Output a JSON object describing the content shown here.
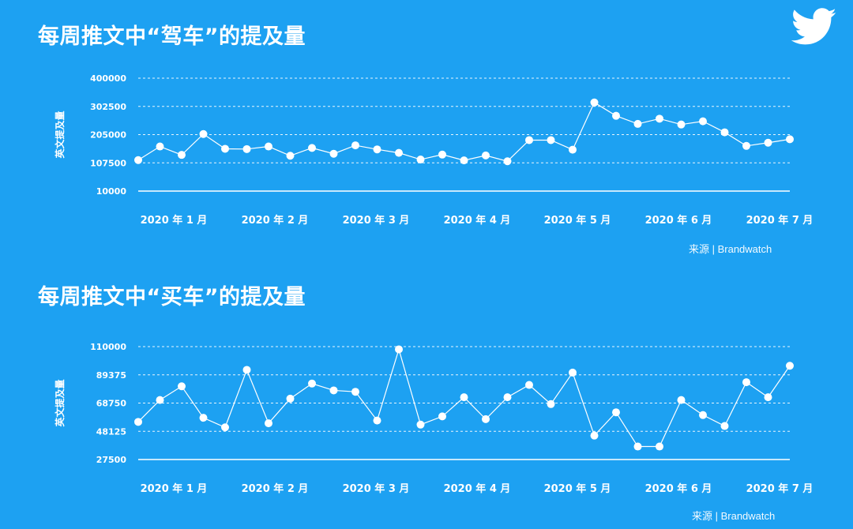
{
  "colors": {
    "background": "#1DA1F2",
    "foreground": "#FFFFFF"
  },
  "logo": {
    "icon": "twitter-bird-icon"
  },
  "chart_data": [
    {
      "type": "line",
      "title": "每周推文中“驾车”的提及量",
      "ylabel": "英文提及量",
      "yticks": [
        10000,
        107500,
        205000,
        302500,
        400000
      ],
      "ylim": [
        10000,
        400000
      ],
      "xtick_labels": [
        "2020 年 1 月",
        "2020 年 2 月",
        "2020 年 3 月",
        "2020 年 4 月",
        "2020 年 5 月",
        "2020 年 6 月",
        "2020 年 7 月"
      ],
      "grid": true,
      "values": [
        117000,
        164000,
        135000,
        207000,
        156000,
        155000,
        164000,
        132000,
        159000,
        139000,
        168000,
        154000,
        142000,
        119000,
        136000,
        116000,
        133000,
        113000,
        186000,
        186000,
        153000,
        316000,
        270000,
        242000,
        260000,
        240000,
        251000,
        213000,
        166000,
        177000,
        189000
      ],
      "source": "来源 | Brandwatch"
    },
    {
      "type": "line",
      "title": "每周推文中“买车”的提及量",
      "ylabel": "英文提及量",
      "yticks": [
        27500,
        48125,
        68750,
        89375,
        110000
      ],
      "ylim": [
        27500,
        110000
      ],
      "xtick_labels": [
        "2020 年 1 月",
        "2020 年 2 月",
        "2020 年 3 月",
        "2020 年 4 月",
        "2020 年 5 月",
        "2020 年 6 月",
        "2020 年 7 月"
      ],
      "grid": true,
      "values": [
        55000,
        71000,
        81000,
        58000,
        51000,
        93000,
        54000,
        72000,
        83000,
        78000,
        77000,
        56000,
        108000,
        53000,
        59000,
        73000,
        57000,
        73000,
        82000,
        68000,
        91000,
        45000,
        62000,
        37000,
        37000,
        71000,
        60000,
        52000,
        84000,
        73000,
        96000
      ],
      "source": "来源 | Brandwatch"
    }
  ]
}
